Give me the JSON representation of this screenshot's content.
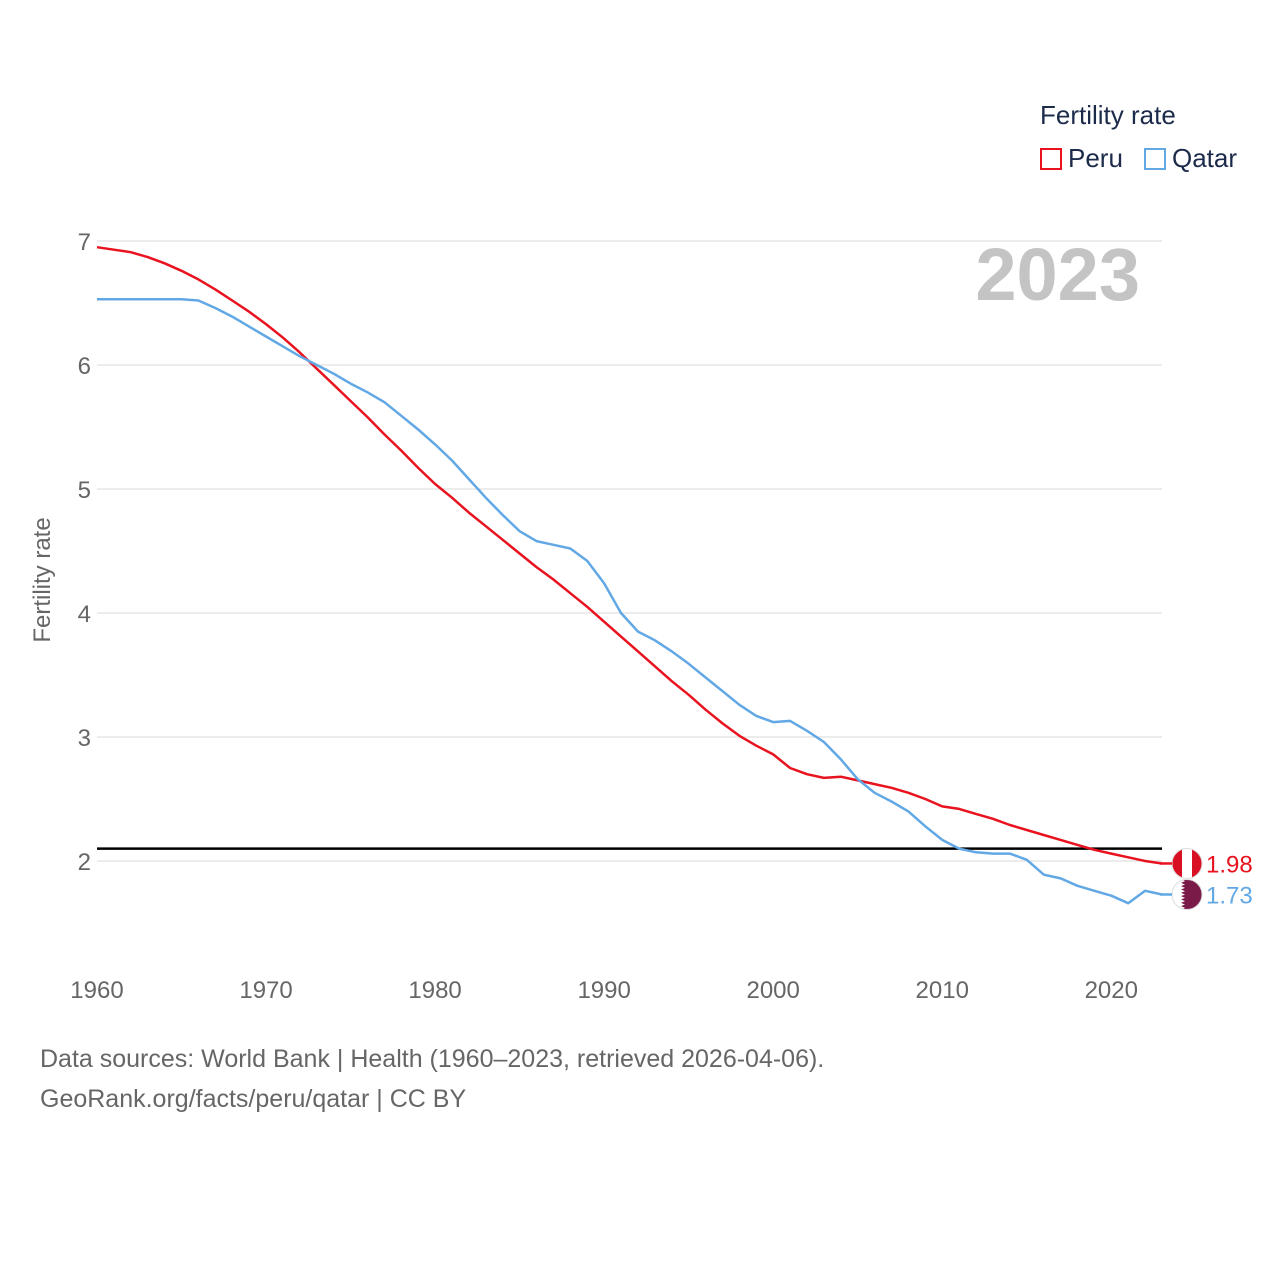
{
  "legend": {
    "title": "Fertility rate",
    "items": [
      {
        "label": "Peru",
        "color": "#e8131f"
      },
      {
        "label": "Qatar",
        "color": "#62a8e5"
      }
    ]
  },
  "year_label": "2023",
  "source": {
    "line1": "Data sources: World Bank | Health (1960–2023, retrieved 2026-04-06).",
    "line2": "GeoRank.org/facts/peru/qatar | CC BY"
  },
  "chart_data": {
    "type": "line",
    "title": "",
    "xlabel": "",
    "ylabel": "Fertility rate",
    "xlim": [
      1960,
      2023
    ],
    "ylim": [
      1.3,
      7.0
    ],
    "x_ticks": [
      1960,
      1970,
      1980,
      1990,
      2000,
      2010,
      2020
    ],
    "y_ticks": [
      2,
      3,
      4,
      5,
      6,
      7
    ],
    "reference_line": {
      "y": 2.1,
      "color": "#000000"
    },
    "x": [
      1960,
      1961,
      1962,
      1963,
      1964,
      1965,
      1966,
      1967,
      1968,
      1969,
      1970,
      1971,
      1972,
      1973,
      1974,
      1975,
      1976,
      1977,
      1978,
      1979,
      1980,
      1981,
      1982,
      1983,
      1984,
      1985,
      1986,
      1987,
      1988,
      1989,
      1990,
      1991,
      1992,
      1993,
      1994,
      1995,
      1996,
      1997,
      1998,
      1999,
      2000,
      2001,
      2002,
      2003,
      2004,
      2005,
      2006,
      2007,
      2008,
      2009,
      2010,
      2011,
      2012,
      2013,
      2014,
      2015,
      2016,
      2017,
      2018,
      2019,
      2020,
      2021,
      2022,
      2023
    ],
    "series": [
      {
        "name": "Peru",
        "color": "#e8131f",
        "end_label": "1.98",
        "values": [
          6.95,
          6.93,
          6.91,
          6.87,
          6.82,
          6.76,
          6.69,
          6.61,
          6.52,
          6.43,
          6.33,
          6.22,
          6.1,
          5.97,
          5.84,
          5.71,
          5.58,
          5.44,
          5.31,
          5.17,
          5.04,
          4.93,
          4.81,
          4.7,
          4.59,
          4.48,
          4.37,
          4.27,
          4.16,
          4.05,
          3.93,
          3.81,
          3.69,
          3.57,
          3.45,
          3.34,
          3.22,
          3.11,
          3.01,
          2.93,
          2.86,
          2.75,
          2.7,
          2.67,
          2.68,
          2.65,
          2.62,
          2.59,
          2.55,
          2.5,
          2.44,
          2.42,
          2.38,
          2.34,
          2.29,
          2.25,
          2.21,
          2.17,
          2.13,
          2.09,
          2.06,
          2.03,
          2.0,
          1.98
        ]
      },
      {
        "name": "Qatar",
        "color": "#62a8e5",
        "end_label": "1.73",
        "values": [
          6.53,
          6.53,
          6.53,
          6.53,
          6.53,
          6.53,
          6.52,
          6.46,
          6.39,
          6.31,
          6.23,
          6.15,
          6.07,
          6.0,
          5.93,
          5.85,
          5.78,
          5.7,
          5.59,
          5.48,
          5.36,
          5.23,
          5.08,
          4.93,
          4.79,
          4.66,
          4.58,
          4.55,
          4.52,
          4.42,
          4.24,
          4.0,
          3.85,
          3.78,
          3.69,
          3.59,
          3.48,
          3.37,
          3.26,
          3.17,
          3.12,
          3.13,
          3.05,
          2.96,
          2.82,
          2.66,
          2.55,
          2.48,
          2.4,
          2.28,
          2.17,
          2.1,
          2.07,
          2.06,
          2.06,
          2.01,
          1.89,
          1.86,
          1.8,
          1.76,
          1.72,
          1.66,
          1.76,
          1.73
        ]
      }
    ]
  }
}
